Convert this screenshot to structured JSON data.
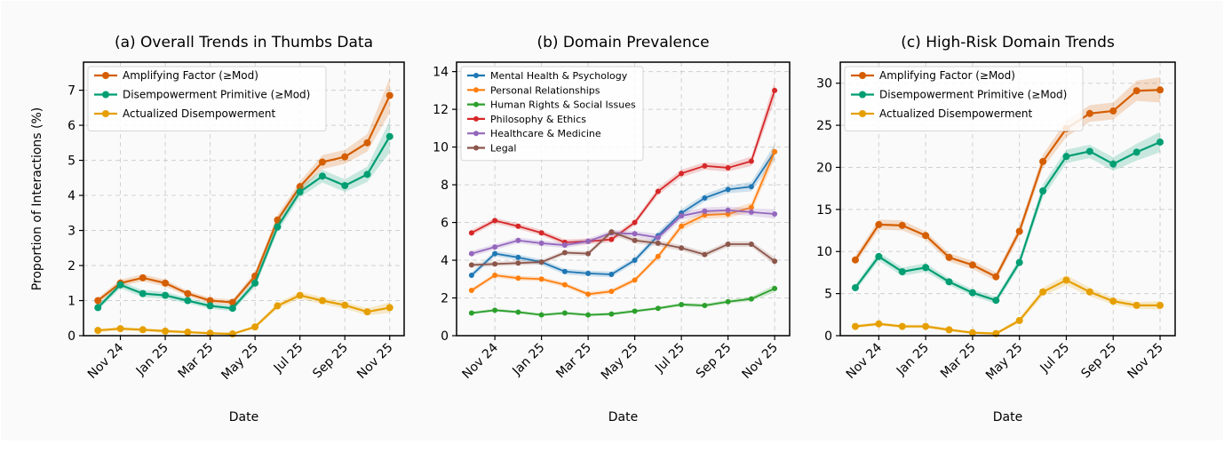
{
  "colors": {
    "amplifying": "#D55E00",
    "disempowerment": "#009E73",
    "actualized": "#E69F00",
    "mental": "#1F77B4",
    "personal": "#FF7F0E",
    "human_rights": "#2CA02C",
    "philosophy": "#D62728",
    "healthcare": "#9467BD",
    "legal": "#8C564B"
  },
  "chart_data": [
    {
      "type": "line",
      "title": "(a) Overall Trends in Thumbs Data",
      "xlabel": "Date",
      "ylabel": "Proportion of Interactions (%)",
      "x": [
        "Oct 24",
        "Nov 24",
        "Dec 24",
        "Jan 25",
        "Feb 25",
        "Mar 25",
        "Apr 25",
        "May 25",
        "Jun 25",
        "Jul 25",
        "Aug 25",
        "Sep 25",
        "Oct 25",
        "Nov 25"
      ],
      "x_ticks": [
        "Nov 24",
        "Jan 25",
        "Mar 25",
        "May 25",
        "Jul 25",
        "Sep 25",
        "Nov 25"
      ],
      "ylim": [
        0,
        7.8
      ],
      "y_ticks": [
        0,
        1,
        2,
        3,
        4,
        5,
        6,
        7
      ],
      "legend_position": "top-left",
      "series": [
        {
          "name": "Amplifying Factor (≥Mod)",
          "color_key": "amplifying",
          "values": [
            1.0,
            1.5,
            1.65,
            1.5,
            1.2,
            1.0,
            0.95,
            1.7,
            3.3,
            4.25,
            4.95,
            5.1,
            5.5,
            6.85
          ],
          "band": [
            0.08,
            0.1,
            0.1,
            0.1,
            0.08,
            0.08,
            0.08,
            0.12,
            0.15,
            0.15,
            0.2,
            0.2,
            0.25,
            0.5
          ]
        },
        {
          "name": "Disempowerment Primitive (≥Mod)",
          "color_key": "disempowerment",
          "values": [
            0.8,
            1.45,
            1.2,
            1.15,
            1.0,
            0.85,
            0.78,
            1.5,
            3.1,
            4.1,
            4.55,
            4.28,
            4.6,
            5.68
          ],
          "band": [
            0.08,
            0.1,
            0.1,
            0.1,
            0.08,
            0.08,
            0.08,
            0.12,
            0.15,
            0.15,
            0.18,
            0.18,
            0.22,
            0.45
          ]
        },
        {
          "name": "Actualized Disempowerment",
          "color_key": "actualized",
          "values": [
            0.15,
            0.2,
            0.17,
            0.13,
            0.1,
            0.07,
            0.05,
            0.25,
            0.85,
            1.15,
            1.0,
            0.87,
            0.68,
            0.8
          ],
          "band": [
            0.05,
            0.05,
            0.05,
            0.05,
            0.04,
            0.03,
            0.03,
            0.05,
            0.08,
            0.1,
            0.1,
            0.1,
            0.1,
            0.15
          ]
        }
      ]
    },
    {
      "type": "line",
      "title": "(b) Domain Prevalence",
      "xlabel": "Date",
      "ylabel": "",
      "x": [
        "Oct 24",
        "Nov 24",
        "Dec 24",
        "Jan 25",
        "Feb 25",
        "Mar 25",
        "Apr 25",
        "May 25",
        "Jun 25",
        "Jul 25",
        "Aug 25",
        "Sep 25",
        "Oct 25",
        "Nov 25"
      ],
      "x_ticks": [
        "Nov 24",
        "Jan 25",
        "Mar 25",
        "May 25",
        "Jul 25",
        "Sep 25",
        "Nov 25"
      ],
      "ylim": [
        0,
        14.5
      ],
      "y_ticks": [
        0,
        2,
        4,
        6,
        8,
        10,
        12,
        14
      ],
      "legend_position": "top-left",
      "series": [
        {
          "name": "Mental Health & Psychology",
          "color_key": "mental",
          "values": [
            3.2,
            4.35,
            4.15,
            3.9,
            3.4,
            3.3,
            3.25,
            4.0,
            5.3,
            6.5,
            7.3,
            7.75,
            7.9,
            9.75
          ],
          "band": [
            0.15,
            0.15,
            0.15,
            0.15,
            0.15,
            0.15,
            0.15,
            0.15,
            0.2,
            0.2,
            0.2,
            0.2,
            0.25,
            0.4
          ]
        },
        {
          "name": "Personal Relationships",
          "color_key": "personal",
          "values": [
            2.4,
            3.2,
            3.05,
            3.0,
            2.7,
            2.2,
            2.35,
            2.95,
            4.2,
            5.8,
            6.4,
            6.45,
            6.8,
            9.75
          ],
          "band": [
            0.12,
            0.12,
            0.12,
            0.12,
            0.12,
            0.12,
            0.12,
            0.12,
            0.15,
            0.2,
            0.2,
            0.2,
            0.25,
            0.4
          ]
        },
        {
          "name": "Human Rights & Social Issues",
          "color_key": "human_rights",
          "values": [
            1.2,
            1.35,
            1.25,
            1.1,
            1.2,
            1.1,
            1.15,
            1.3,
            1.45,
            1.65,
            1.6,
            1.8,
            1.95,
            2.5
          ],
          "band": [
            0.08,
            0.08,
            0.08,
            0.08,
            0.08,
            0.08,
            0.08,
            0.08,
            0.08,
            0.1,
            0.1,
            0.1,
            0.12,
            0.2
          ]
        },
        {
          "name": "Philosophy & Ethics",
          "color_key": "philosophy",
          "values": [
            5.45,
            6.1,
            5.8,
            5.45,
            4.95,
            5.0,
            5.1,
            6.0,
            7.65,
            8.6,
            9.0,
            8.9,
            9.25,
            13.0
          ],
          "band": [
            0.15,
            0.15,
            0.15,
            0.15,
            0.15,
            0.15,
            0.15,
            0.15,
            0.2,
            0.2,
            0.2,
            0.2,
            0.25,
            0.5
          ]
        },
        {
          "name": "Healthcare & Medicine",
          "color_key": "healthcare",
          "values": [
            4.35,
            4.7,
            5.05,
            4.9,
            4.8,
            5.0,
            5.45,
            5.4,
            5.2,
            6.35,
            6.6,
            6.65,
            6.55,
            6.45
          ],
          "band": [
            0.15,
            0.15,
            0.15,
            0.15,
            0.15,
            0.15,
            0.15,
            0.15,
            0.2,
            0.2,
            0.2,
            0.2,
            0.2,
            0.25
          ]
        },
        {
          "name": "Legal",
          "color_key": "legal",
          "values": [
            3.75,
            3.8,
            3.85,
            3.9,
            4.4,
            4.35,
            5.5,
            5.05,
            4.9,
            4.65,
            4.3,
            4.85,
            4.85,
            3.95
          ],
          "band": [
            0.12,
            0.12,
            0.12,
            0.12,
            0.12,
            0.12,
            0.15,
            0.15,
            0.15,
            0.15,
            0.15,
            0.15,
            0.15,
            0.2
          ]
        }
      ]
    },
    {
      "type": "line",
      "title": "(c) High-Risk Domain Trends",
      "xlabel": "Date",
      "ylabel": "",
      "x": [
        "Oct 24",
        "Nov 24",
        "Dec 24",
        "Jan 25",
        "Feb 25",
        "Mar 25",
        "Apr 25",
        "May 25",
        "Jun 25",
        "Jul 25",
        "Aug 25",
        "Sep 25",
        "Oct 25",
        "Nov 25"
      ],
      "x_ticks": [
        "Nov 24",
        "Jan 25",
        "Mar 25",
        "May 25",
        "Jul 25",
        "Sep 25",
        "Nov 25"
      ],
      "ylim": [
        0,
        32.5
      ],
      "y_ticks": [
        0,
        5,
        10,
        15,
        20,
        25,
        30
      ],
      "legend_position": "top-left",
      "series": [
        {
          "name": "Amplifying Factor (≥Mod)",
          "color_key": "amplifying",
          "values": [
            9.0,
            13.2,
            13.1,
            11.9,
            9.3,
            8.4,
            7.0,
            12.4,
            20.7,
            24.6,
            26.4,
            26.7,
            29.1,
            29.2
          ],
          "band": [
            0.5,
            0.6,
            0.6,
            0.5,
            0.5,
            0.5,
            0.5,
            0.6,
            0.8,
            1.0,
            1.0,
            1.0,
            1.2,
            1.5
          ]
        },
        {
          "name": "Disempowerment Primitive (≥Mod)",
          "color_key": "disempowerment",
          "values": [
            5.7,
            9.4,
            7.6,
            8.1,
            6.4,
            5.1,
            4.2,
            8.7,
            17.2,
            21.3,
            21.9,
            20.4,
            21.8,
            23.0
          ],
          "band": [
            0.4,
            0.5,
            0.5,
            0.5,
            0.4,
            0.4,
            0.4,
            0.5,
            0.8,
            0.8,
            0.8,
            0.8,
            1.0,
            1.2
          ]
        },
        {
          "name": "Actualized Disempowerment",
          "color_key": "actualized",
          "values": [
            1.1,
            1.4,
            1.1,
            1.1,
            0.7,
            0.35,
            0.25,
            1.8,
            5.2,
            6.6,
            5.2,
            4.1,
            3.6,
            3.6
          ],
          "band": [
            0.2,
            0.2,
            0.2,
            0.2,
            0.2,
            0.15,
            0.15,
            0.3,
            0.5,
            0.6,
            0.5,
            0.4,
            0.4,
            0.5
          ]
        }
      ]
    }
  ]
}
